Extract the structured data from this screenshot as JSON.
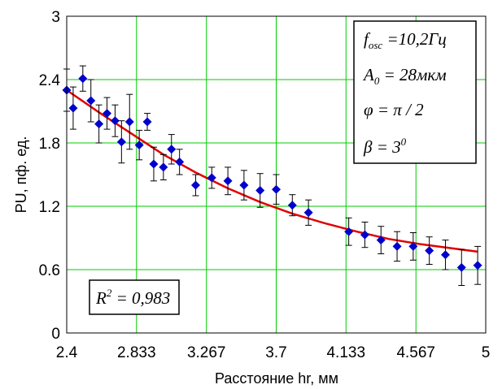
{
  "chart_data": {
    "type": "scatter",
    "xlabel": "Расстояние hr, мм",
    "ylabel": "PU, пф. ед.",
    "xlim": [
      2.4,
      5.0
    ],
    "ylim": [
      0,
      3.0
    ],
    "x_ticks": [
      "2.4",
      "2.833",
      "3.267",
      "3.7",
      "4.133",
      "4.567",
      "5"
    ],
    "x_tick_values": [
      2.4,
      2.833,
      3.267,
      3.7,
      4.133,
      4.567,
      5.0
    ],
    "y_ticks": [
      "0",
      "0.6",
      "1.2",
      "1.8",
      "2.4",
      "3"
    ],
    "y_tick_values": [
      0,
      0.6,
      1.2,
      1.8,
      2.4,
      3.0
    ],
    "grid": true,
    "colors": {
      "points": "#0000cc",
      "fit": "#e00000",
      "grid": "#00cc00",
      "errorbar": "#000000"
    },
    "series": [
      {
        "kind": "points",
        "x": [
          2.4,
          2.44,
          2.5,
          2.55,
          2.6,
          2.65,
          2.7,
          2.74,
          2.79,
          2.85,
          2.9,
          2.94,
          3.0,
          3.05,
          3.1,
          3.2,
          3.3,
          3.4,
          3.5,
          3.6,
          3.7,
          3.8,
          3.9,
          4.15,
          4.25,
          4.35,
          4.45,
          4.55,
          4.65,
          4.75,
          4.85,
          4.95
        ],
        "y": [
          2.3,
          2.13,
          2.41,
          2.2,
          1.98,
          2.08,
          2.01,
          1.81,
          2.0,
          1.78,
          2.0,
          1.6,
          1.57,
          1.74,
          1.62,
          1.4,
          1.47,
          1.44,
          1.4,
          1.35,
          1.36,
          1.21,
          1.14,
          0.96,
          0.93,
          0.88,
          0.82,
          0.82,
          0.78,
          0.74,
          0.62,
          0.64
        ],
        "err": [
          0.2,
          0.2,
          0.12,
          0.2,
          0.18,
          0.15,
          0.15,
          0.2,
          0.26,
          0.14,
          0.08,
          0.16,
          0.12,
          0.14,
          0.12,
          0.1,
          0.1,
          0.13,
          0.14,
          0.16,
          0.14,
          0.1,
          0.12,
          0.13,
          0.12,
          0.13,
          0.14,
          0.13,
          0.13,
          0.14,
          0.17,
          0.18
        ]
      },
      {
        "kind": "line",
        "x": [
          2.4,
          2.6,
          2.8,
          3.0,
          3.2,
          3.4,
          3.6,
          3.8,
          4.0,
          4.2,
          4.4,
          4.6,
          4.8,
          4.95
        ],
        "y": [
          2.3,
          2.09,
          1.89,
          1.69,
          1.52,
          1.37,
          1.24,
          1.13,
          1.04,
          0.96,
          0.89,
          0.84,
          0.8,
          0.77
        ]
      }
    ],
    "annotations": {
      "r2": {
        "base": "R",
        "sup": "2",
        "rest": " = 0,983"
      },
      "params": [
        {
          "base": "f",
          "sub": "osc",
          "rest": " =10,2Гц"
        },
        {
          "base": "A",
          "sub": "0",
          "rest": " = 28мкм"
        },
        {
          "base": "φ",
          "sub": "",
          "rest": " = π / 2"
        },
        {
          "base": "β",
          "sub": "",
          "rest": " = 3",
          "sup": "0"
        }
      ]
    }
  }
}
